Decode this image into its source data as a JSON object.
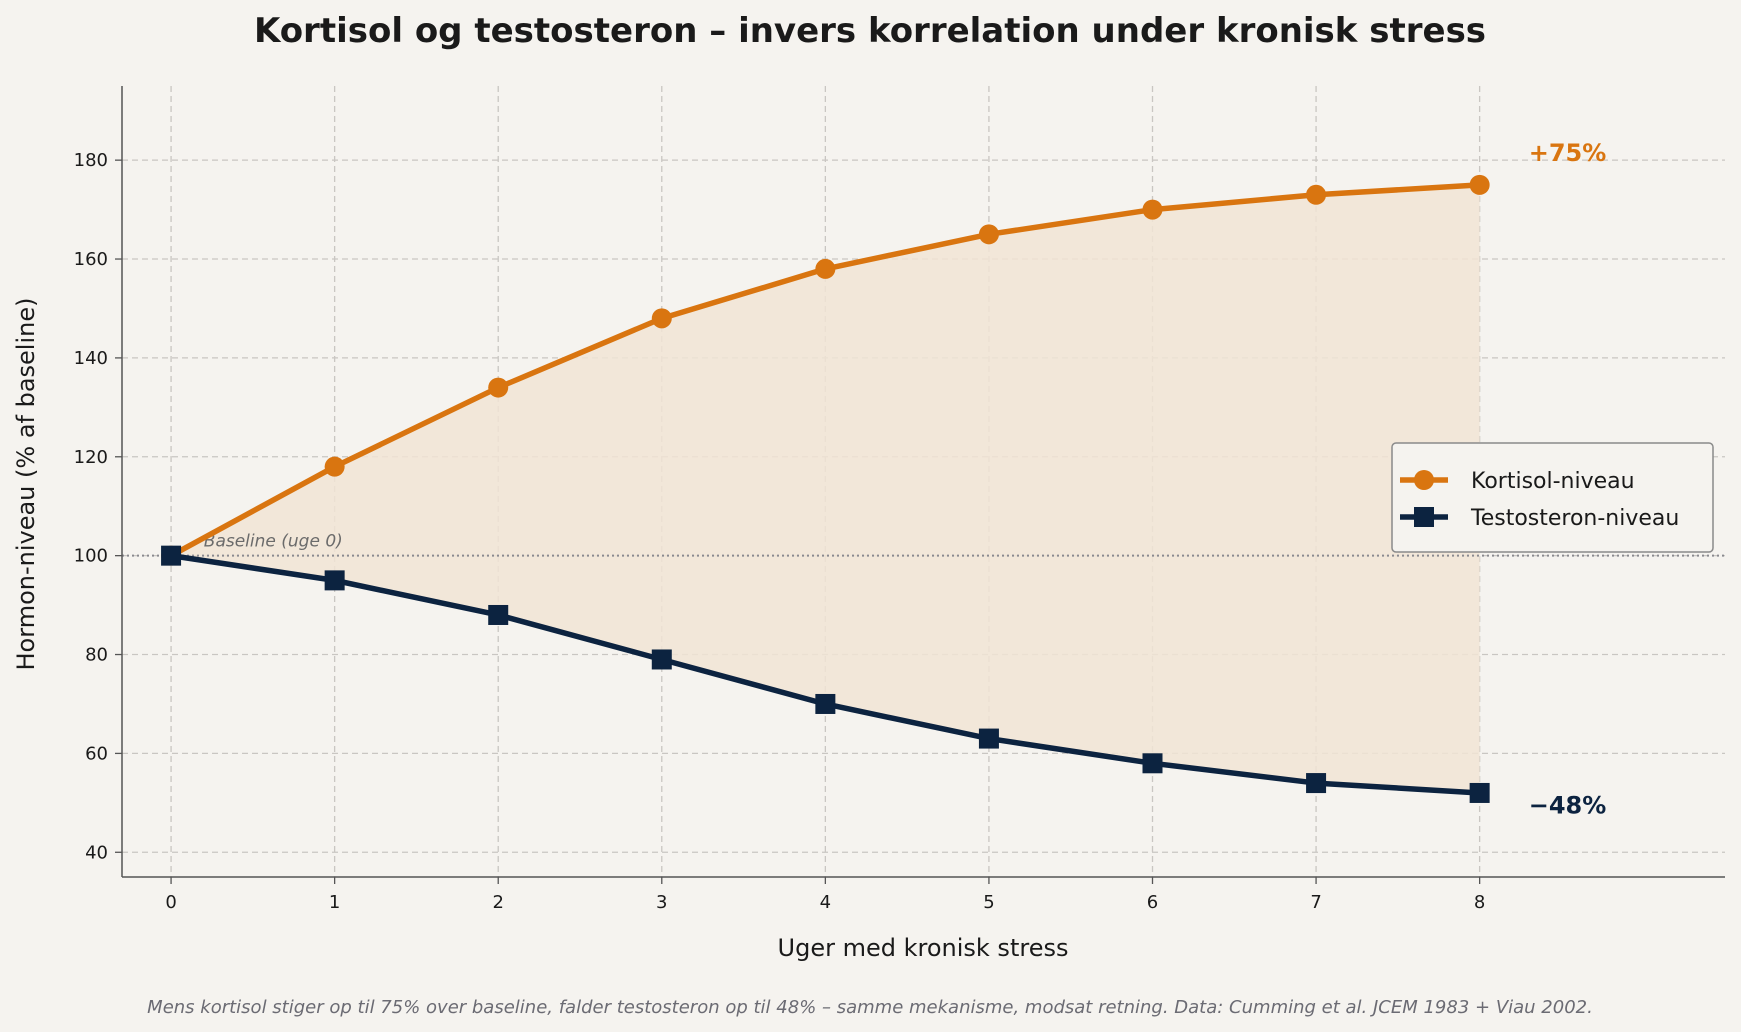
{
  "colors": {
    "background": "#f5f3ef",
    "cortisol": "#d97510",
    "testosterone": "#0c2340",
    "fill": "#f1e4d5",
    "grid": "#c9c6c2",
    "baseline": "#8a8a90",
    "axis": "#555555",
    "caption": "#6b6b73"
  },
  "chart_data": {
    "type": "line",
    "title": "Kortisol og testosteron – invers korrelation under kronisk stress",
    "xlabel": "Uger med kronisk stress",
    "ylabel": "Hormon-niveau (% af baseline)",
    "x": [
      0,
      1,
      2,
      3,
      4,
      5,
      6,
      7,
      8
    ],
    "xlim": [
      -0.3,
      9.5
    ],
    "ylim": [
      35,
      195
    ],
    "xticks": [
      0,
      1,
      2,
      3,
      4,
      5,
      6,
      7,
      8
    ],
    "yticks": [
      40,
      60,
      80,
      100,
      120,
      140,
      160,
      180
    ],
    "grid": true,
    "legend_position": "center-right",
    "series": [
      {
        "name": "Kortisol-niveau",
        "marker": "circle",
        "color": "#d97510",
        "values": [
          100,
          118,
          134,
          148,
          158,
          165,
          170,
          173,
          175
        ],
        "end_label": "+75%"
      },
      {
        "name": "Testosteron-niveau",
        "marker": "square",
        "color": "#0c2340",
        "values": [
          100,
          95,
          88,
          79,
          70,
          63,
          58,
          54,
          52
        ],
        "end_label": "−48%"
      }
    ],
    "baseline": {
      "value": 100,
      "label": "Baseline (uge 0)"
    },
    "caption": "Mens kortisol stiger op til 75% over baseline, falder testosteron op til 48% – samme mekanisme, modsat retning. Data: Cumming et al. JCEM 1983 + Viau 2002."
  }
}
